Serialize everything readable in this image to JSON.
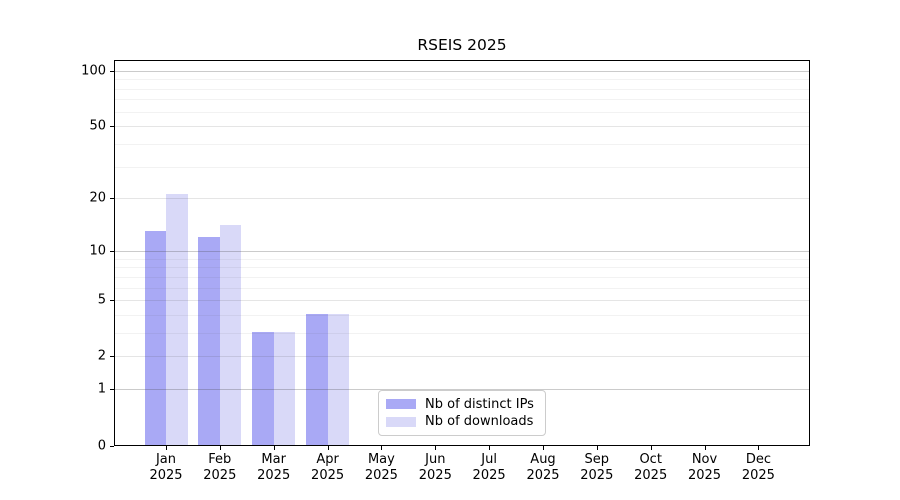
{
  "title": "RSEIS 2025",
  "chart_data": {
    "type": "bar",
    "title": "RSEIS 2025",
    "xlabel": "",
    "ylabel": "",
    "y_scale": "log10(1+y)",
    "ylim": [
      0,
      115
    ],
    "yticks": [
      0,
      1,
      2,
      5,
      10,
      20,
      50,
      100
    ],
    "grid": "major and minor horizontal gridlines, drawn over bars",
    "legend_position": "inside plot, bottom center",
    "categories": [
      "Jan 2025",
      "Feb 2025",
      "Mar 2025",
      "Apr 2025",
      "May 2025",
      "Jun 2025",
      "Jul 2025",
      "Aug 2025",
      "Sep 2025",
      "Oct 2025",
      "Nov 2025",
      "Dec 2025"
    ],
    "series": [
      {
        "name": "Nb of distinct IPs",
        "color": "#a9a9f5",
        "values": [
          13,
          12,
          3,
          4,
          0,
          0,
          0,
          0,
          0,
          0,
          0,
          0
        ]
      },
      {
        "name": "Nb of downloads",
        "color": "#d9d9f8",
        "values": [
          21,
          14,
          3,
          4,
          0,
          0,
          0,
          0,
          0,
          0,
          0,
          0
        ]
      }
    ]
  },
  "colors": {
    "bar_distinct_ips": "#a9a9f5",
    "bar_downloads": "#d9d9f8",
    "axis": "#000000",
    "legend_border": "#cccccc",
    "background": "#ffffff"
  },
  "legend": {
    "items": [
      "Nb of distinct IPs",
      "Nb of downloads"
    ]
  }
}
